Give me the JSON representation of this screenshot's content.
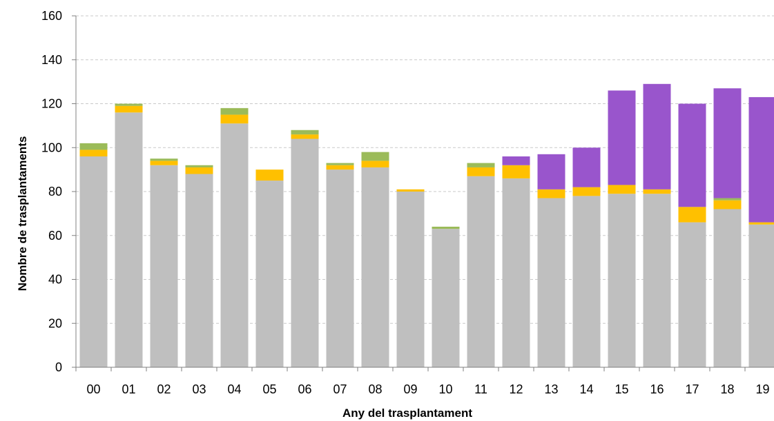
{
  "chart_data": {
    "type": "bar",
    "stacked": true,
    "title": "",
    "xlabel": "Any del trasplantament",
    "ylabel": "Nombre de trasplantaments",
    "ylim": [
      0,
      160
    ],
    "yticks": [
      0,
      20,
      40,
      60,
      80,
      100,
      120,
      140,
      160
    ],
    "grid": true,
    "legend": "none",
    "categories": [
      "00",
      "01",
      "02",
      "03",
      "04",
      "05",
      "06",
      "07",
      "08",
      "09",
      "10",
      "11",
      "12",
      "13",
      "14",
      "15",
      "16",
      "17",
      "18",
      "19"
    ],
    "series": [
      {
        "color": "#bfbfbf",
        "values": [
          96,
          116,
          92,
          88,
          111,
          85,
          104,
          90,
          91,
          80,
          63,
          87,
          86,
          77,
          78,
          79,
          79,
          66,
          72,
          65
        ]
      },
      {
        "color": "#ffc000",
        "values": [
          3,
          3,
          2,
          3,
          4,
          5,
          2,
          2,
          3,
          1,
          0,
          4,
          6,
          4,
          4,
          4,
          2,
          7,
          4,
          1
        ]
      },
      {
        "color": "#9bbb59",
        "values": [
          3,
          1,
          1,
          1,
          3,
          0,
          2,
          1,
          4,
          0,
          1,
          2,
          0,
          0,
          0,
          0,
          0,
          0,
          1,
          0
        ]
      },
      {
        "color": "#9955cc",
        "values": [
          0,
          0,
          0,
          0,
          0,
          0,
          0,
          0,
          0,
          0,
          0,
          0,
          4,
          16,
          18,
          43,
          48,
          47,
          50,
          57
        ]
      }
    ]
  }
}
